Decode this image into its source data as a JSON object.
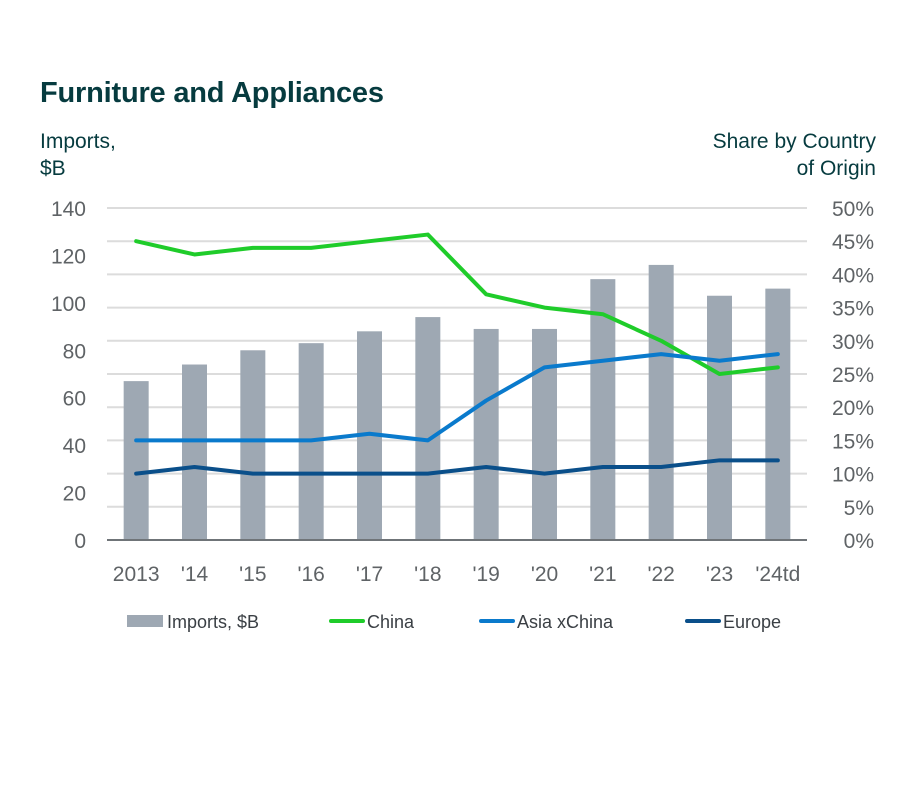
{
  "chart_data": {
    "type": "bar+line",
    "title": "Furniture and Appliances",
    "ylabel_left": [
      "Imports,",
      "$B"
    ],
    "ylabel_right": [
      "Share by Country",
      "of Origin"
    ],
    "categories": [
      "2013",
      "'14",
      "'15",
      "'16",
      "'17",
      "'18",
      "'19",
      "'20",
      "'21",
      "'22",
      "'23",
      "'24td"
    ],
    "ylim_left": [
      0,
      140
    ],
    "yticks_left": [
      "0",
      "20",
      "40",
      "60",
      "80",
      "100",
      "120",
      "140"
    ],
    "ylim_right": [
      0,
      50
    ],
    "yticks_right": [
      "0%",
      "5%",
      "10%",
      "15%",
      "20%",
      "25%",
      "30%",
      "35%",
      "40%",
      "45%",
      "50%"
    ],
    "grid": true,
    "legend_position": "bottom",
    "series": [
      {
        "name": "Imports, $B",
        "type": "bar",
        "axis": "left",
        "color": "#9ea8b3",
        "values": [
          67,
          74,
          80,
          83,
          88,
          94,
          89,
          89,
          110,
          116,
          103,
          106
        ]
      },
      {
        "name": "China",
        "type": "line",
        "axis": "right",
        "unit": "%",
        "color": "#1fcc2a",
        "values": [
          45,
          43,
          44,
          44,
          45,
          46,
          37,
          35,
          34,
          30,
          25,
          26
        ]
      },
      {
        "name": "Asia xChina",
        "type": "line",
        "axis": "right",
        "unit": "%",
        "color": "#0a7acc",
        "values": [
          15,
          15,
          15,
          15,
          16,
          15,
          21,
          26,
          27,
          28,
          27,
          28
        ]
      },
      {
        "name": "Europe",
        "type": "line",
        "axis": "right",
        "unit": "%",
        "color": "#0a4f8a",
        "values": [
          10,
          11,
          10,
          10,
          10,
          10,
          11,
          10,
          11,
          11,
          12,
          12
        ]
      }
    ]
  }
}
